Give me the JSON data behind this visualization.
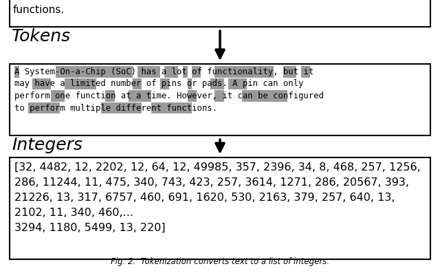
{
  "top_text": "functions.",
  "tokens_label": "Tokens",
  "integers_label": "Integers",
  "token_lines": [
    "A System-On-a-Chip (SoC) has a lot of functionality, but it",
    "may have a limited number of pins or pads. A pin can only",
    "perform one function at a time. However, it can be configured",
    "to perform multiple different functions."
  ],
  "integers_lines": [
    "[32, 4482, 12, 2202, 12, 64, 12, 49985, 357, 2396, 34, 8, 468, 257, 1256,",
    "286, 11244, 11, 475, 340, 743, 423, 257, 3614, 1271, 286, 20567, 393,",
    "21226, 13, 317, 6757, 460, 691, 1620, 530, 2163, 379, 257, 640, 13,",
    "2102, 11, 340, 460,...",
    "3294, 1180, 5499, 13, 220]"
  ],
  "caption": "Fig. 2.  Tokenization converts text to a list of integers.",
  "bg_color": "#ffffff",
  "box_border": "#000000",
  "highlight_color": "#999999",
  "arrow_color": "#000000",
  "highlight_data": [
    [
      [
        0,
        1
      ],
      [
        9,
        26
      ],
      [
        27,
        32
      ],
      [
        33,
        36
      ],
      [
        37,
        38
      ],
      [
        39,
        41
      ],
      [
        44,
        57
      ],
      [
        59,
        62
      ],
      [
        63,
        65
      ]
    ],
    [
      [
        4,
        8
      ],
      [
        11,
        18
      ],
      [
        26,
        28
      ],
      [
        32,
        34
      ],
      [
        38,
        39
      ],
      [
        43,
        46
      ],
      [
        47,
        51
      ]
    ],
    [
      [
        8,
        11
      ],
      [
        20,
        22
      ],
      [
        25,
        30
      ],
      [
        38,
        40
      ],
      [
        44,
        46
      ],
      [
        50,
        60
      ]
    ],
    [
      [
        3,
        10
      ],
      [
        19,
        28
      ],
      [
        30,
        39
      ]
    ]
  ]
}
